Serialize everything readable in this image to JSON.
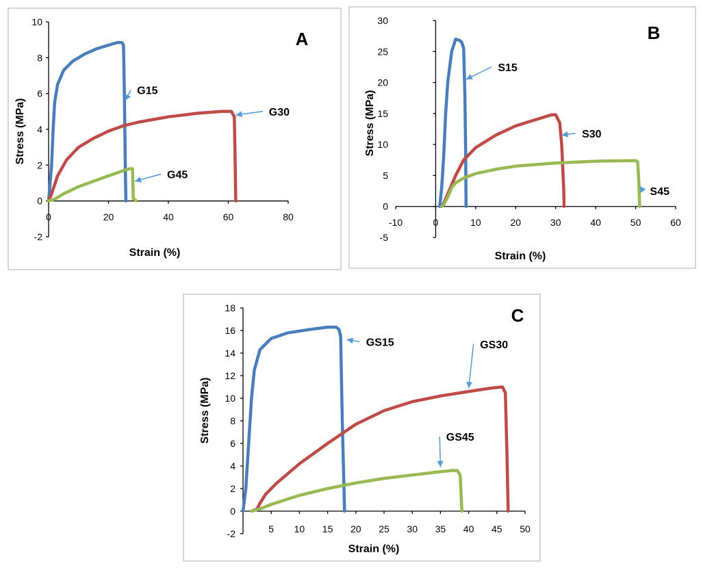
{
  "colors": {
    "blue": "#4a7ebb",
    "red": "#be4b48",
    "green": "#98b954",
    "arrow": "#5b9bd5"
  },
  "chart_data": [
    {
      "type": "line",
      "panel": "A",
      "xlabel": "Strain (%)",
      "ylabel": "Stress (MPa)",
      "xlim": [
        0,
        80
      ],
      "ylim": [
        -2,
        10
      ],
      "xticks": [
        0,
        20,
        40,
        60,
        80
      ],
      "yticks": [
        -2,
        0,
        2,
        4,
        6,
        8,
        10
      ],
      "series": [
        {
          "name": "G15",
          "color": "blue",
          "x": [
            0,
            1,
            1.5,
            2,
            3,
            5,
            8,
            12,
            16,
            20,
            23,
            24.5,
            25,
            25.3,
            25.6,
            25.8
          ],
          "y": [
            0,
            2,
            4,
            5.5,
            6.5,
            7.3,
            7.8,
            8.2,
            8.5,
            8.7,
            8.85,
            8.85,
            8.7,
            6,
            2,
            0
          ]
        },
        {
          "name": "G30",
          "color": "red",
          "x": [
            0,
            1,
            3,
            6,
            10,
            15,
            20,
            25,
            30,
            40,
            50,
            58,
            61,
            62,
            62.3,
            62.5
          ],
          "y": [
            0,
            0.4,
            1.4,
            2.3,
            3.0,
            3.5,
            3.9,
            4.2,
            4.4,
            4.7,
            4.9,
            5.0,
            5.0,
            4.7,
            2,
            0
          ]
        },
        {
          "name": "G45",
          "color": "green",
          "x": [
            0,
            2,
            5,
            10,
            15,
            20,
            25,
            27,
            28,
            28.3,
            28.5,
            29,
            29.2
          ],
          "y": [
            0,
            0.1,
            0.4,
            0.8,
            1.1,
            1.4,
            1.7,
            1.8,
            1.8,
            0.1,
            0.1,
            0.05,
            0
          ]
        }
      ],
      "annotations": [
        {
          "text": "G15",
          "x": 33,
          "y": 6.2,
          "tip_x": 25.5,
          "tip_y": 5.6
        },
        {
          "text": "G30",
          "x": 77,
          "y": 5.0,
          "tip_x": 62.5,
          "tip_y": 4.8
        },
        {
          "text": "G45",
          "x": 43,
          "y": 1.5,
          "tip_x": 28.8,
          "tip_y": 1.1
        }
      ]
    },
    {
      "type": "line",
      "panel": "B",
      "xlabel": "Strain (%)",
      "ylabel": "Stress (MPa)",
      "xlim": [
        -10,
        60
      ],
      "ylim": [
        -5,
        30
      ],
      "xticks": [
        -10,
        0,
        10,
        20,
        30,
        40,
        50,
        60
      ],
      "yticks": [
        -5,
        0,
        5,
        10,
        15,
        20,
        25,
        30
      ],
      "series": [
        {
          "name": "S15",
          "color": "blue",
          "x": [
            1,
            1.5,
            2,
            2.5,
            3,
            4,
            5,
            6,
            6.5,
            7,
            7.3,
            7.5,
            7.6
          ],
          "y": [
            0,
            3,
            8,
            15,
            20,
            25,
            27,
            26.8,
            26.5,
            25.5,
            18,
            8,
            0
          ]
        },
        {
          "name": "S30",
          "color": "red",
          "x": [
            1.5,
            2,
            3,
            4,
            5,
            7,
            10,
            15,
            20,
            25,
            29,
            30,
            31,
            31.5,
            32,
            32.1
          ],
          "y": [
            0,
            0.5,
            2,
            3.5,
            5,
            7.5,
            9.5,
            11.5,
            13,
            14,
            14.8,
            14.8,
            13.5,
            10,
            3,
            0
          ]
        },
        {
          "name": "S45",
          "color": "green",
          "x": [
            1.5,
            2,
            3,
            4,
            5,
            7,
            10,
            15,
            20,
            30,
            40,
            50,
            50.5,
            50.8,
            51
          ],
          "y": [
            0,
            0.3,
            1.5,
            3,
            3.8,
            4.6,
            5.3,
            6.0,
            6.5,
            7.0,
            7.3,
            7.4,
            7.2,
            4,
            0
          ]
        }
      ],
      "annotations": [
        {
          "text": "S15",
          "x": 18,
          "y": 22.5,
          "tip_x": 7.6,
          "tip_y": 20.5
        },
        {
          "text": "S30",
          "x": 39,
          "y": 11.8,
          "tip_x": 31.5,
          "tip_y": 11.5
        },
        {
          "text": "S45",
          "x": 56,
          "y": 2.5,
          "tip_x": 51,
          "tip_y": 3.3
        }
      ]
    },
    {
      "type": "line",
      "panel": "C",
      "xlabel": "Strain (%)",
      "ylabel": "Stress (MPa)",
      "xlim": [
        0,
        50
      ],
      "ylim": [
        -2,
        18
      ],
      "xticks": [
        5,
        10,
        15,
        20,
        25,
        30,
        35,
        40,
        45,
        50
      ],
      "yticks": [
        -2,
        0,
        2,
        4,
        6,
        8,
        10,
        12,
        14,
        16,
        18
      ],
      "series": [
        {
          "name": "GS15",
          "color": "blue",
          "x": [
            0,
            0.5,
            1,
            1.5,
            2,
            3,
            5,
            8,
            12,
            15,
            16.5,
            17,
            17.3,
            17.6,
            17.9,
            18
          ],
          "y": [
            0,
            2,
            6,
            10,
            12.5,
            14.3,
            15.3,
            15.8,
            16.1,
            16.3,
            16.3,
            16.1,
            15.5,
            8,
            2,
            0
          ]
        },
        {
          "name": "GS30",
          "color": "red",
          "x": [
            1.5,
            2.5,
            3,
            4,
            6,
            10,
            15,
            20,
            25,
            30,
            35,
            40,
            44,
            46,
            46.5,
            46.8,
            47
          ],
          "y": [
            0,
            0.2,
            0.7,
            1.5,
            2.5,
            4.2,
            6,
            7.7,
            8.9,
            9.7,
            10.2,
            10.6,
            10.9,
            11,
            10.5,
            5,
            0
          ]
        },
        {
          "name": "GS45",
          "color": "green",
          "x": [
            1.5,
            3,
            5,
            10,
            15,
            20,
            25,
            30,
            35,
            37,
            38,
            38.5,
            38.7,
            38.8
          ],
          "y": [
            0,
            0.2,
            0.6,
            1.4,
            2.0,
            2.5,
            2.9,
            3.2,
            3.5,
            3.6,
            3.6,
            3.2,
            1,
            0
          ]
        }
      ],
      "annotations": [
        {
          "text": "GS15",
          "x": 24.3,
          "y": 15.0,
          "tip_x": 18.4,
          "tip_y": 15.2
        },
        {
          "text": "GS30",
          "x": 44.5,
          "y": 14.8,
          "tip_x": 40,
          "tip_y": 10.9
        },
        {
          "text": "GS45",
          "x": 38.5,
          "y": 6.6,
          "tip_x": 35,
          "tip_y": 3.9
        }
      ]
    }
  ]
}
